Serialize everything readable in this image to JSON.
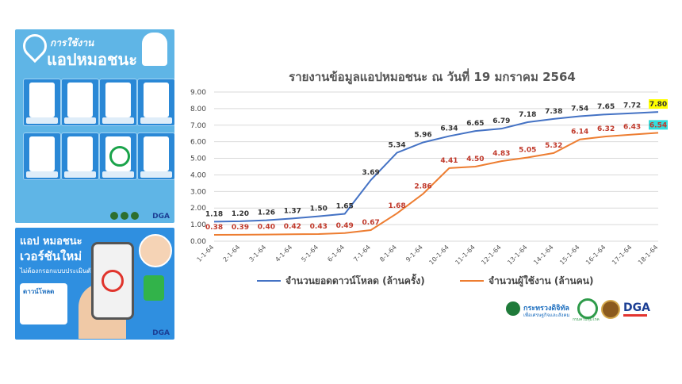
{
  "poster_top": {
    "title_line1": "การใช้งาน",
    "title_line2": "แอปหมอชนะ",
    "brand": "DGA"
  },
  "poster_bottom": {
    "line1": "แอป หมอชนะ",
    "line2": "เวอร์ชันใหม่",
    "line3": "ไม่ต้องกรอกแบบประเมินตัวเองแล้ว",
    "download": "ดาวน์โหลด",
    "brand": "DGA"
  },
  "chart_data": {
    "type": "line",
    "title": "รายงานข้อมูลแอปหมอชนะ ณ วันที่ 19 มกราคม 2564",
    "categories": [
      "1-1-64",
      "2-1-64",
      "3-1-64",
      "4-1-64",
      "5-1-64",
      "6-1-64",
      "7-1-64",
      "8-1-64",
      "9-1-64",
      "10-1-64",
      "11-1-64",
      "12-1-64",
      "13-1-64",
      "14-1-64",
      "15-1-64",
      "16-1-64",
      "17-1-64",
      "18-1-64"
    ],
    "ylim": [
      0,
      9
    ],
    "yticks": [
      "0.00",
      "1.00",
      "2.00",
      "3.00",
      "4.00",
      "5.00",
      "6.00",
      "7.00",
      "8.00",
      "9.00"
    ],
    "grid": true,
    "legend_position": "bottom",
    "series": [
      {
        "name": "จำนวนยอดดาวน์โหลด (ล้านครั้ง)",
        "color": "#4472c4",
        "values": [
          1.18,
          1.2,
          1.26,
          1.37,
          1.5,
          1.65,
          3.69,
          5.34,
          5.96,
          6.34,
          6.65,
          6.79,
          7.18,
          7.38,
          7.54,
          7.65,
          7.72,
          7.8
        ],
        "labels": [
          "1.18",
          "1.20",
          "1.26",
          "1.37",
          "1.50",
          "1.65",
          "3.69",
          "5.34",
          "5.96",
          "6.34",
          "6.65",
          "6.79",
          "7.18",
          "7.38",
          "7.54",
          "7.65",
          "7.72",
          "7.80"
        ]
      },
      {
        "name": "จำนวนผู้ใช้งาน (ล้านคน)",
        "color": "#ed7d31",
        "values": [
          0.38,
          0.39,
          0.4,
          0.42,
          0.43,
          0.49,
          0.67,
          1.68,
          2.86,
          4.41,
          4.5,
          4.83,
          5.05,
          5.32,
          6.14,
          6.32,
          6.43,
          6.54
        ],
        "labels": [
          "0.38",
          "0.39",
          "0.40",
          "0.42",
          "0.43",
          "0.49",
          "0.67",
          "1.68",
          "2.86",
          "4.41",
          "4.50",
          "4.83",
          "5.05",
          "5.32",
          "6.14",
          "6.32",
          "6.43",
          "6.54"
        ]
      }
    ],
    "highlight_colors": {
      "last_download": "#ffff00",
      "last_users": "#33dddd"
    }
  },
  "footer": {
    "ministry_name": "กระทรวงดิจิทัล",
    "ministry_sub": "เพื่อเศรษฐกิจและสังคม",
    "moph_sub": "กรมควบคุมโรค",
    "dga": "DGA"
  }
}
